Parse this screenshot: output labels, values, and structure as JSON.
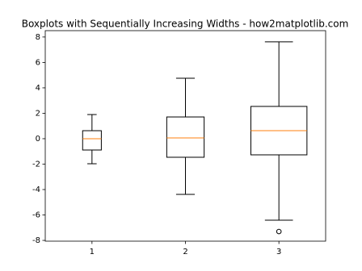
{
  "chart_data": {
    "type": "box",
    "title": "Boxplots with Sequentially Increasing Widths - how2matplotlib.com",
    "x": [
      1,
      2,
      3
    ],
    "xticks": [
      1,
      2,
      3
    ],
    "xlim": [
      0.5,
      3.5
    ],
    "ylim": [
      -8.06,
      8.5
    ],
    "yticks": [
      -8,
      -6,
      -4,
      -2,
      0,
      2,
      4,
      6,
      8
    ],
    "widths": [
      0.2,
      0.4,
      0.6
    ],
    "box_color": "#000000",
    "median_color": "#ff7f0e",
    "boxes": [
      {
        "whislo": -1.97,
        "q1": -0.89,
        "med": 0.0,
        "q3": 0.63,
        "whishi": 1.9,
        "fliers": []
      },
      {
        "whislo": -4.38,
        "q1": -1.46,
        "med": 0.06,
        "q3": 1.71,
        "whishi": 4.76,
        "fliers": []
      },
      {
        "whislo": -6.41,
        "q1": -1.27,
        "med": 0.63,
        "q3": 2.54,
        "whishi": 7.62,
        "fliers": [
          -7.3
        ]
      }
    ]
  }
}
